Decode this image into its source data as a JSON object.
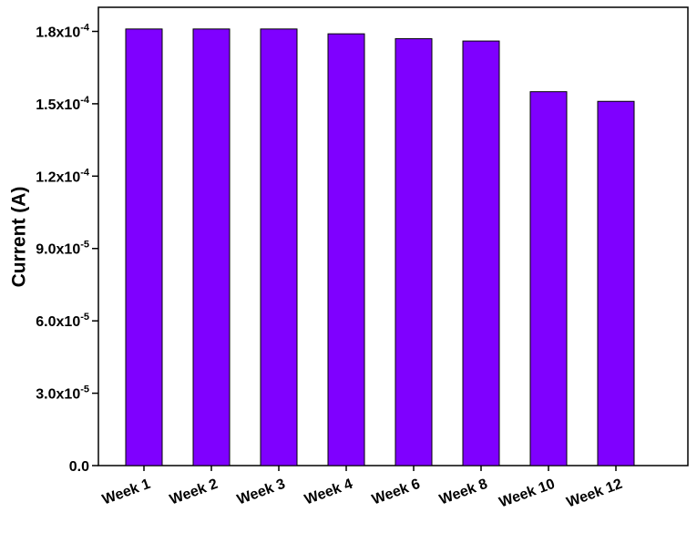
{
  "chart_data": {
    "type": "bar",
    "y_label": "Current (A)",
    "categories": [
      "Week 1",
      "Week 2",
      "Week 3",
      "Week 4",
      "Week 6",
      "Week 8",
      "Week 10",
      "Week 12"
    ],
    "values": [
      0.000181,
      0.000181,
      0.000181,
      0.000179,
      0.000177,
      0.000176,
      0.000155,
      0.000151
    ],
    "color": "#7f00ff",
    "ylim": [
      0,
      0.00019
    ],
    "yticks": [
      {
        "value": 0,
        "label": "0.0"
      },
      {
        "value": 3e-05,
        "label": "3.0x10-5"
      },
      {
        "value": 6e-05,
        "label": "6.0x10-5"
      },
      {
        "value": 9e-05,
        "label": "9.0x10-5"
      },
      {
        "value": 0.00012,
        "label": "1.2x10-4"
      },
      {
        "value": 0.00015,
        "label": "1.5x10-4"
      },
      {
        "value": 0.00018,
        "label": "1.8x10-4"
      }
    ],
    "grid": false
  }
}
